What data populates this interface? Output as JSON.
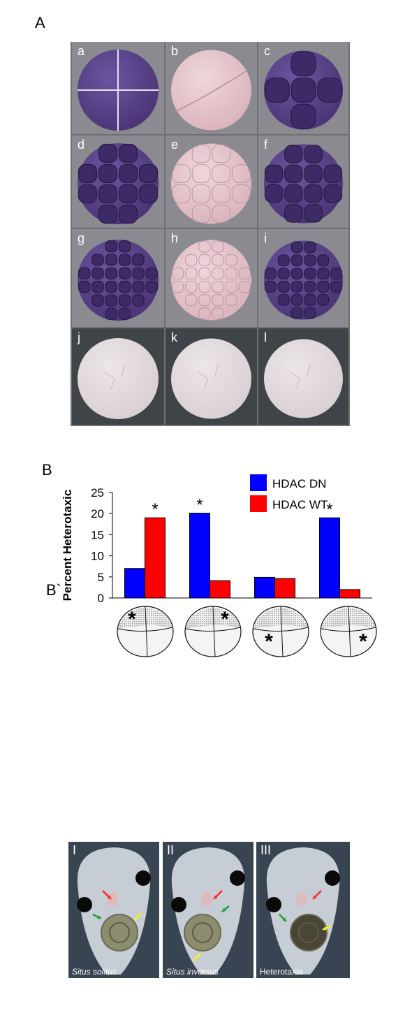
{
  "panels": {
    "a": {
      "letter": "A"
    },
    "b": {
      "letter": "B"
    },
    "bprime": {
      "letter": "B`"
    }
  },
  "grid_a": {
    "rows": [
      [
        {
          "label": "a",
          "stain": "purple",
          "pattern": "four-cell"
        },
        {
          "label": "b",
          "stain": "pink",
          "pattern": "two-cell"
        },
        {
          "label": "c",
          "stain": "purple",
          "pattern": "eight-side"
        }
      ],
      [
        {
          "label": "d",
          "stain": "purple",
          "pattern": "sixteen"
        },
        {
          "label": "e",
          "stain": "pink",
          "pattern": "sixteen-faint"
        },
        {
          "label": "f",
          "stain": "purple",
          "pattern": "sixteen-side"
        }
      ],
      [
        {
          "label": "g",
          "stain": "purple",
          "pattern": "thirtytwo"
        },
        {
          "label": "h",
          "stain": "pink",
          "pattern": "thirtytwo-faint"
        },
        {
          "label": "i",
          "stain": "purple",
          "pattern": "thirtytwo-side"
        }
      ],
      [
        {
          "label": "j",
          "stain": "none",
          "pattern": "pale"
        },
        {
          "label": "k",
          "stain": "none",
          "pattern": "pale"
        },
        {
          "label": "l",
          "stain": "none",
          "pattern": "pale"
        }
      ]
    ]
  },
  "chart_data": {
    "type": "bar",
    "title": "",
    "xlabel": "",
    "ylabel": "Percent Heterotaxic",
    "categories": [
      "VL",
      "VR",
      "DL",
      "DR"
    ],
    "ylim": [
      0,
      25
    ],
    "yticks": [
      0,
      5,
      10,
      15,
      20,
      25
    ],
    "grid": false,
    "legend_position": "top-right",
    "series": [
      {
        "name": "HDAC DN",
        "color": "#0000ff",
        "values": [
          7,
          20.1,
          4.9,
          19
        ]
      },
      {
        "name": "HDAC WT",
        "color": "#ff0000",
        "values": [
          19,
          4.1,
          4.6,
          2
        ]
      }
    ],
    "significance": [
      {
        "category": "VL",
        "series": "HDAC WT",
        "marker": "*"
      },
      {
        "category": "VR",
        "series": "HDAC DN",
        "marker": "*"
      },
      {
        "category": "DR",
        "series": "HDAC DN",
        "marker": "*"
      }
    ]
  },
  "bprime_embryos": [
    {
      "quadrant": "upper-left",
      "marker": "*"
    },
    {
      "quadrant": "upper-right",
      "marker": "*"
    },
    {
      "quadrant": "lower-left",
      "marker": "*"
    },
    {
      "quadrant": "lower-right",
      "marker": "*"
    }
  ],
  "photos": [
    {
      "label": "I",
      "caption": "Situs solitus",
      "italic": true
    },
    {
      "label": "II",
      "caption": "Situs inversus",
      "italic": true
    },
    {
      "label": "III",
      "caption": "Heterotaxia",
      "italic": false
    }
  ],
  "colors": {
    "purple_stain": "#4a3475",
    "pink_stain": "#d9b3bc",
    "pale": "#d8cfd2",
    "arrow_red": "#ff2a2a",
    "arrow_green": "#19a335",
    "arrow_yellow": "#f5f02a"
  }
}
